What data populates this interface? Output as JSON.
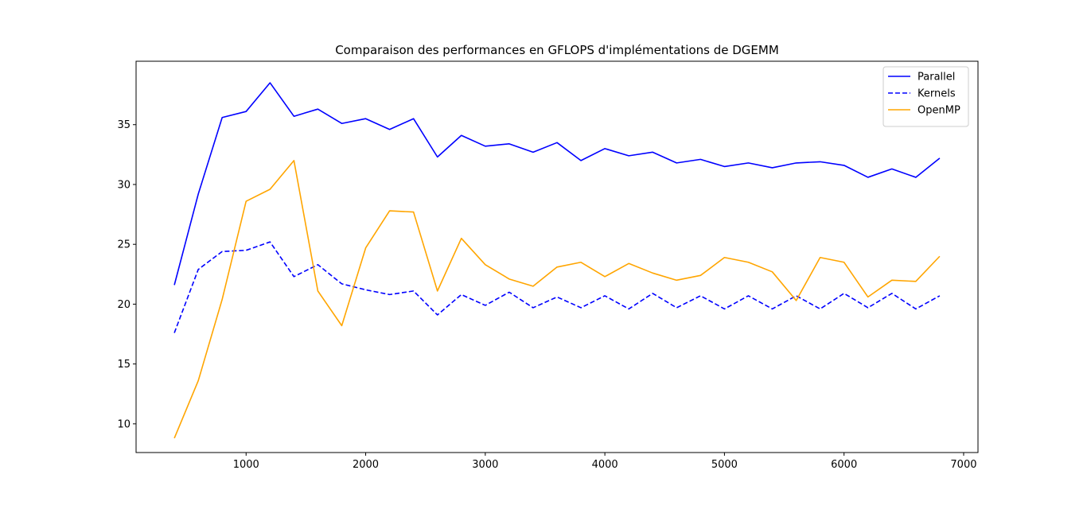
{
  "chart_data": {
    "type": "line",
    "title": "Comparaison des performances en GFLOPS d'implémentations de DGEMM",
    "xlabel": "",
    "ylabel": "",
    "xlim": [
      80,
      7120
    ],
    "ylim": [
      7.6,
      40.3
    ],
    "xticks": [
      1000,
      2000,
      3000,
      4000,
      5000,
      6000,
      7000
    ],
    "yticks": [
      10,
      15,
      20,
      25,
      30,
      35
    ],
    "grid": false,
    "legend_position": "top-right",
    "x": [
      400,
      600,
      800,
      1000,
      1200,
      1400,
      1600,
      1800,
      2000,
      2200,
      2400,
      2600,
      2800,
      3000,
      3200,
      3400,
      3600,
      3800,
      4000,
      4200,
      4400,
      4600,
      4800,
      5000,
      5200,
      5400,
      5600,
      5800,
      6000,
      6200,
      6400,
      6600,
      6800
    ],
    "series": [
      {
        "name": "Parallel",
        "color": "#0000ff",
        "style": "solid",
        "values": [
          21.6,
          29.2,
          35.6,
          36.1,
          38.5,
          35.7,
          36.3,
          35.1,
          35.5,
          34.6,
          35.5,
          32.3,
          34.1,
          33.2,
          33.4,
          32.7,
          33.5,
          32.0,
          33.0,
          32.4,
          32.7,
          31.8,
          32.1,
          31.5,
          31.8,
          31.4,
          31.8,
          31.9,
          31.6,
          30.6,
          31.3,
          30.6,
          32.2
        ]
      },
      {
        "name": "Kernels",
        "color": "#0000ff",
        "style": "dashed",
        "values": [
          17.6,
          22.9,
          24.4,
          24.5,
          25.2,
          22.3,
          23.3,
          21.7,
          21.2,
          20.8,
          21.1,
          19.1,
          20.8,
          19.9,
          21.0,
          19.7,
          20.6,
          19.7,
          20.7,
          19.6,
          20.9,
          19.7,
          20.7,
          19.6,
          20.7,
          19.6,
          20.7,
          19.6,
          20.9,
          19.7,
          20.9,
          19.6,
          20.7
        ]
      },
      {
        "name": "OpenMP",
        "color": "#ffa500",
        "style": "solid",
        "values": [
          8.8,
          13.6,
          20.4,
          28.6,
          29.6,
          32.0,
          21.1,
          18.2,
          24.7,
          27.8,
          27.7,
          21.1,
          25.5,
          23.3,
          22.1,
          21.5,
          23.1,
          23.5,
          22.3,
          23.4,
          22.6,
          22.0,
          22.4,
          23.9,
          23.5,
          22.7,
          20.3,
          23.9,
          23.5,
          20.6,
          22.0,
          21.9,
          24.0
        ]
      }
    ]
  }
}
